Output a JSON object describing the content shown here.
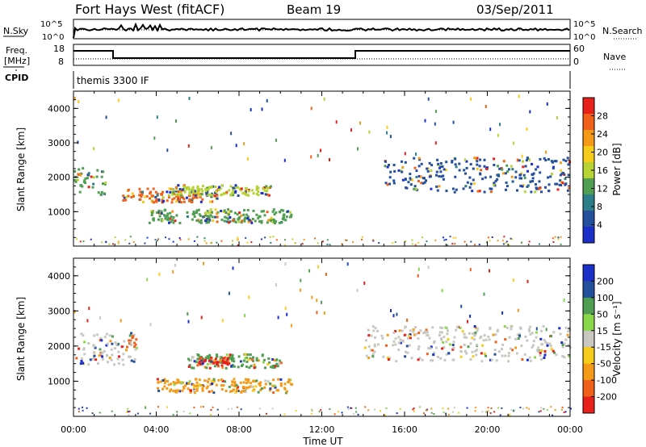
{
  "header": {
    "station": "Fort Hays West (fitACF)",
    "beam": "Beam 19",
    "date": "03/Sep/2011"
  },
  "noise_panel": {
    "left_label": "N.Sky",
    "right_label": "N.Search",
    "left_ticks": [
      "10^5",
      "10^0"
    ],
    "right_ticks": [
      "10^5",
      "10^0"
    ]
  },
  "freq_panel": {
    "left_label_1": "Freq.",
    "left_label_2": "[MHz]",
    "left_ticks": [
      "18",
      "8"
    ],
    "right_ticks": [
      "60",
      "0"
    ],
    "right_label": "Nave",
    "cpid_label": "CPID",
    "cpid_text": "themis 3300 IF"
  },
  "chart_data": [
    {
      "type": "heatmap",
      "name": "power",
      "ylabel": "Slant Range [km]",
      "y_ticks": [
        "1000",
        "2000",
        "3000",
        "4000"
      ],
      "ylim": [
        0,
        4500
      ],
      "colorbar_label": "Power [dB]",
      "colorbar_ticks": [
        "28",
        "24",
        "20",
        "16",
        "12",
        "8",
        "4"
      ],
      "colorbar_colors": [
        "#e8201a",
        "#f06018",
        "#f59a16",
        "#f5cc1a",
        "#b6d233",
        "#4f9e52",
        "#2c7f8a",
        "#244f9c",
        "#1a30c8"
      ],
      "features": [
        {
          "t0": 0.0,
          "t1": 1.5,
          "r0": 1500,
          "r1": 2300,
          "color": "#4f9e52"
        },
        {
          "t0": 2.3,
          "t1": 7.0,
          "r0": 1300,
          "r1": 1700,
          "color": "#f06018"
        },
        {
          "t0": 4.5,
          "t1": 9.5,
          "r0": 1500,
          "r1": 1800,
          "color": "#b6d233"
        },
        {
          "t0": 3.5,
          "t1": 10.5,
          "r0": 700,
          "r1": 1100,
          "color": "#4f9e52"
        },
        {
          "t0": 15.0,
          "t1": 24.0,
          "r0": 1600,
          "r1": 2600,
          "color": "#244f9c"
        }
      ]
    },
    {
      "type": "heatmap",
      "name": "velocity",
      "ylabel": "Slant Range [km]",
      "y_ticks": [
        "1000",
        "2000",
        "3000",
        "4000"
      ],
      "ylim": [
        0,
        4500
      ],
      "colorbar_label": "Velocity [m s⁻¹]",
      "colorbar_ticks": [
        "200",
        "100",
        "50",
        "15",
        "-15",
        "-50",
        "-100",
        "-200"
      ],
      "colorbar_colors": [
        "#1a30c8",
        "#244f9c",
        "#4f9e52",
        "#8ad84a",
        "#c8c8c0",
        "#f5cc1a",
        "#f59a16",
        "#f06018",
        "#e8201a"
      ],
      "features": [
        {
          "t0": 0.0,
          "t1": 3.0,
          "r0": 1500,
          "r1": 2400,
          "color": "#c8c8c0"
        },
        {
          "t0": 2.5,
          "t1": 3.0,
          "r0": 2000,
          "r1": 2400,
          "color": "#f06018"
        },
        {
          "t0": 5.5,
          "t1": 10.0,
          "r0": 1400,
          "r1": 1800,
          "color": "#4f9e52"
        },
        {
          "t0": 6.0,
          "t1": 7.5,
          "r0": 1500,
          "r1": 1700,
          "color": "#e8201a"
        },
        {
          "t0": 4.0,
          "t1": 10.5,
          "r0": 700,
          "r1": 1100,
          "color": "#f59a16"
        },
        {
          "t0": 14.0,
          "t1": 24.0,
          "r0": 1600,
          "r1": 2600,
          "color": "#c8c8c0"
        }
      ]
    }
  ],
  "x_axis": {
    "ticks": [
      "00:00",
      "04:00",
      "08:00",
      "12:00",
      "16:00",
      "20:00",
      "00:00"
    ],
    "label": "Time UT"
  }
}
